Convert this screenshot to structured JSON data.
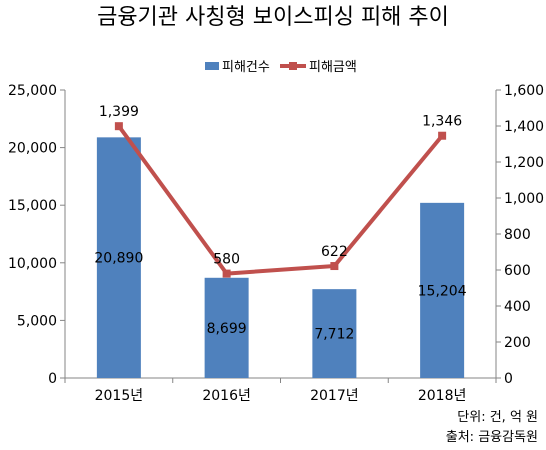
{
  "chart_data": {
    "type": "bar+line",
    "title": "금융기관 사칭형 보이스피싱 피해 추이",
    "categories": [
      "2015년",
      "2016년",
      "2017년",
      "2018년"
    ],
    "series": [
      {
        "name": "피해건수",
        "type": "bar",
        "axis": "left",
        "color": "#4f81bd",
        "values": [
          20890,
          8699,
          7712,
          15204
        ]
      },
      {
        "name": "피해금액",
        "type": "line",
        "axis": "right",
        "color": "#c0504d",
        "values": [
          1399,
          580,
          622,
          1346
        ]
      }
    ],
    "bar_value_labels": [
      "20,890",
      "8,699",
      "7,712",
      "15,204"
    ],
    "line_value_labels": [
      "1,399",
      "580",
      "622",
      "1,346"
    ],
    "y_left": {
      "min": 0,
      "max": 25000,
      "ticks": [
        "0",
        "5,000",
        "10,000",
        "15,000",
        "20,000",
        "25,000"
      ]
    },
    "y_right": {
      "min": 0,
      "max": 1600,
      "ticks": [
        "0",
        "200",
        "400",
        "600",
        "800",
        "1,000",
        "1,200",
        "1,400",
        "1,600"
      ]
    },
    "grid": false,
    "legend_position": "top",
    "unit_note": "단위: 건, 억 원",
    "source_note": "출처: 금융감독원"
  }
}
